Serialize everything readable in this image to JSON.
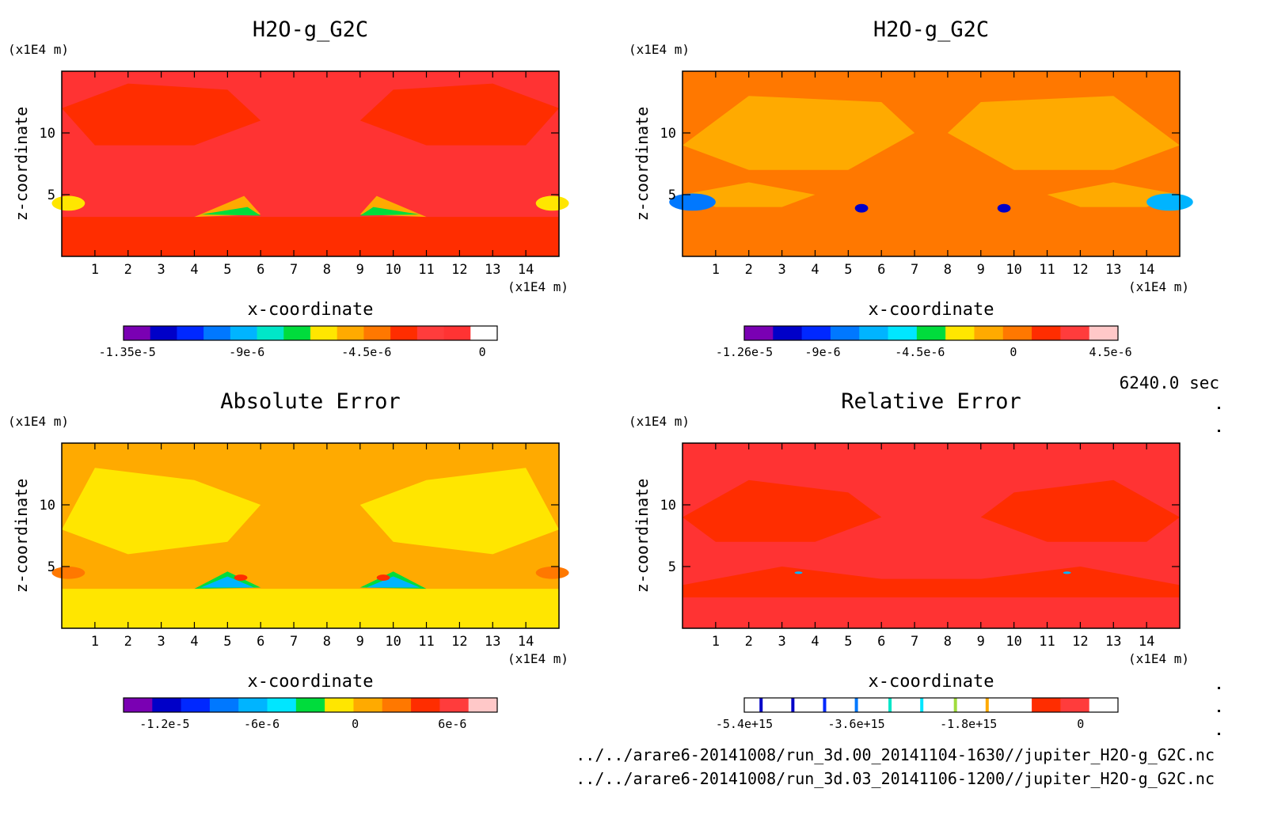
{
  "figure": {
    "time_label": "6240.0 sec",
    "source_files": [
      "../../arare6-20141008/run_3d.00_20141104-1630//jupiter_H2O-g_G2C.nc",
      "../../arare6-20141008/run_3d.03_20141106-1200//jupiter_H2O-g_G2C.nc"
    ]
  },
  "chart_data": [
    {
      "type": "heatmap",
      "title": "H2O-g_G2C",
      "xlabel": "x-coordinate",
      "ylabel": "z-coordinate",
      "x_unit": "(x1E4 m)",
      "y_unit": "(x1E4 m)",
      "x_ticks": [
        "1",
        "2",
        "3",
        "4",
        "5",
        "6",
        "7",
        "8",
        "9",
        "10",
        "11",
        "12",
        "13",
        "14"
      ],
      "y_ticks": [
        "5",
        "10"
      ],
      "xlim": [
        0,
        15
      ],
      "ylim": [
        0,
        15
      ],
      "background_color": "#ff3333",
      "colorbar": {
        "colors": [
          "#7a00b3",
          "#0000c8",
          "#0028ff",
          "#0078ff",
          "#00b4ff",
          "#00e6c8",
          "#00dc3c",
          "#ffe600",
          "#ffaa00",
          "#ff7800",
          "#ff2d00",
          "#ff3c3c",
          "#ff3333",
          "#ffffff"
        ],
        "labels": [
          {
            "text": "-1.35e-5",
            "pos": 0.01
          },
          {
            "text": "-9e-6",
            "pos": 0.33
          },
          {
            "text": "-4.5e-6",
            "pos": 0.65
          },
          {
            "text": "0",
            "pos": 0.96
          }
        ]
      }
    },
    {
      "type": "heatmap",
      "title": "H2O-g_G2C",
      "xlabel": "x-coordinate",
      "ylabel": "z-coordinate",
      "x_unit": "(x1E4 m)",
      "y_unit": "(x1E4 m)",
      "x_ticks": [
        "1",
        "2",
        "3",
        "4",
        "5",
        "6",
        "7",
        "8",
        "9",
        "10",
        "11",
        "12",
        "13",
        "14"
      ],
      "y_ticks": [
        "5",
        "10"
      ],
      "xlim": [
        0,
        15
      ],
      "ylim": [
        0,
        15
      ],
      "background_color": "#ff7800",
      "colorbar": {
        "colors": [
          "#7a00b3",
          "#0000c8",
          "#0028ff",
          "#0078ff",
          "#00b4ff",
          "#00e6ff",
          "#00dc3c",
          "#ffe600",
          "#ffaa00",
          "#ff7800",
          "#ff2d00",
          "#ff3c3c",
          "#ffc8c8"
        ],
        "labels": [
          {
            "text": "-1.26e-5",
            "pos": 0.0
          },
          {
            "text": "-9e-6",
            "pos": 0.21
          },
          {
            "text": "-4.5e-6",
            "pos": 0.47
          },
          {
            "text": "0",
            "pos": 0.72
          },
          {
            "text": "4.5e-6",
            "pos": 0.98
          }
        ]
      }
    },
    {
      "type": "heatmap",
      "title": "Absolute Error",
      "xlabel": "x-coordinate",
      "ylabel": "z-coordinate",
      "x_unit": "(x1E4 m)",
      "y_unit": "(x1E4 m)",
      "x_ticks": [
        "1",
        "2",
        "3",
        "4",
        "5",
        "6",
        "7",
        "8",
        "9",
        "10",
        "11",
        "12",
        "13",
        "14"
      ],
      "y_ticks": [
        "5",
        "10"
      ],
      "xlim": [
        0,
        15
      ],
      "ylim": [
        0,
        15
      ],
      "background_color": "#ffaa00",
      "colorbar": {
        "colors": [
          "#7a00b3",
          "#0000c8",
          "#0028ff",
          "#0078ff",
          "#00b4ff",
          "#00e6ff",
          "#00dc3c",
          "#ffe600",
          "#ffaa00",
          "#ff7800",
          "#ff2d00",
          "#ff3c3c",
          "#ffc8c8"
        ],
        "labels": [
          {
            "text": "-1.2e-5",
            "pos": 0.11
          },
          {
            "text": "-6e-6",
            "pos": 0.37
          },
          {
            "text": "0",
            "pos": 0.62
          },
          {
            "text": "6e-6",
            "pos": 0.88
          }
        ]
      }
    },
    {
      "type": "heatmap",
      "title": "Relative Error",
      "xlabel": "x-coordinate",
      "ylabel": "z-coordinate",
      "x_unit": "(x1E4 m)",
      "y_unit": "(x1E4 m)",
      "x_ticks": [
        "1",
        "2",
        "3",
        "4",
        "5",
        "6",
        "7",
        "8",
        "9",
        "10",
        "11",
        "12",
        "13",
        "14"
      ],
      "y_ticks": [
        "5",
        "10"
      ],
      "xlim": [
        0,
        15
      ],
      "ylim": [
        0,
        15
      ],
      "background_color": "#ff3333",
      "colorbar": {
        "colors": [
          "#ffffff",
          "#ffffff",
          "#ffffff",
          "#ffffff",
          "#ffffff",
          "#ffffff",
          "#ffffff",
          "#ffffff",
          "#ffffff",
          "#ffffff",
          "#ff2d00",
          "#ff3c3c",
          "#ffffff"
        ],
        "stripes": [
          {
            "pos": 0.045,
            "color": "#0000c8"
          },
          {
            "pos": 0.13,
            "color": "#0000c8"
          },
          {
            "pos": 0.215,
            "color": "#0028ff"
          },
          {
            "pos": 0.3,
            "color": "#0078ff"
          },
          {
            "pos": 0.39,
            "color": "#00e6c8"
          },
          {
            "pos": 0.475,
            "color": "#00e6ff"
          },
          {
            "pos": 0.565,
            "color": "#a0dc3c"
          },
          {
            "pos": 0.65,
            "color": "#ffaa00"
          }
        ],
        "labels": [
          {
            "text": "-5.4e+15",
            "pos": 0.0
          },
          {
            "text": "-3.6e+15",
            "pos": 0.3
          },
          {
            "text": "-1.8e+15",
            "pos": 0.6
          },
          {
            "text": "0",
            "pos": 0.9
          }
        ]
      }
    }
  ]
}
